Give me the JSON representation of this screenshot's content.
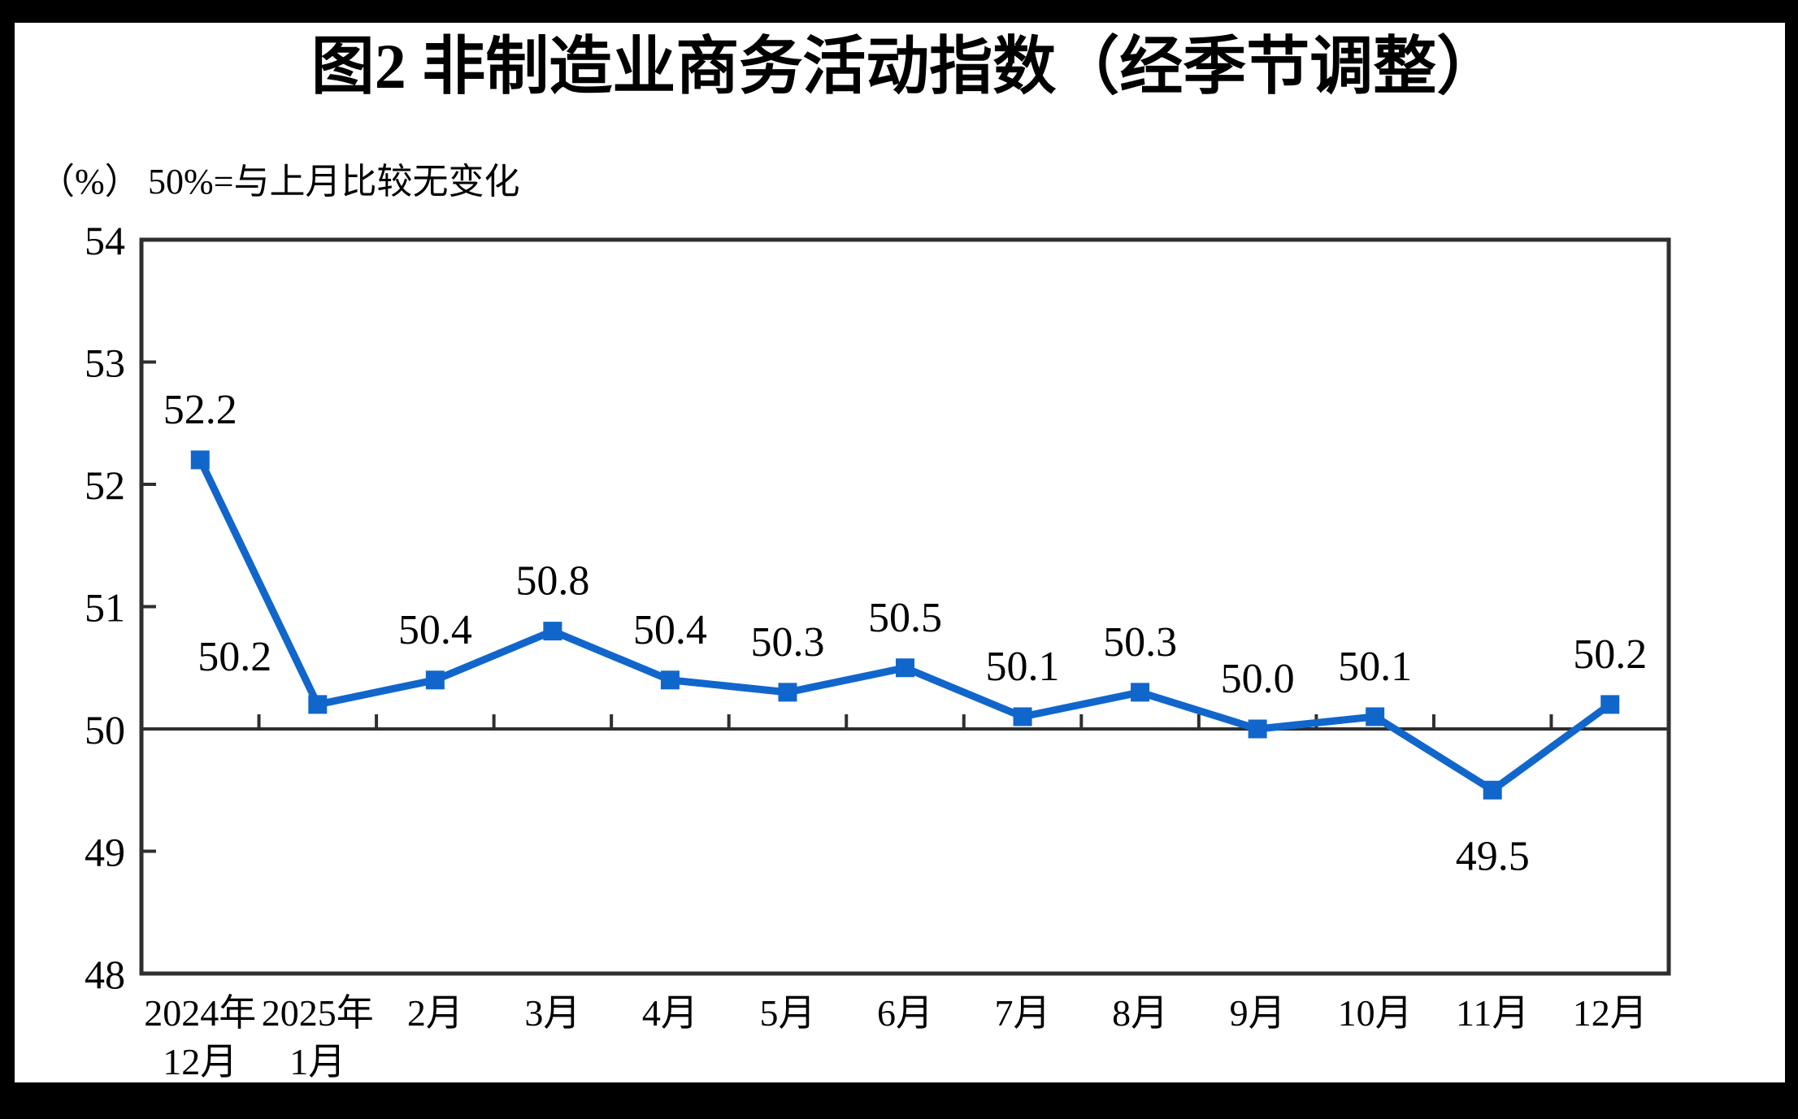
{
  "page": {
    "border_color": "#000000",
    "paper_color": "#ffffff"
  },
  "chart_data": {
    "type": "line",
    "title": "图2 非制造业商务活动指数（经季节调整）",
    "unit_label": "（%）",
    "subtitle": "50%=与上月比较无变化",
    "xlabel": "",
    "ylabel": "",
    "ylim": [
      48,
      54
    ],
    "y_tick_labels": [
      "48",
      "49",
      "50",
      "51",
      "52",
      "53",
      "54"
    ],
    "reference_line": 50,
    "grid": false,
    "legend": "none",
    "marker": "square",
    "categories": [
      [
        "2024年",
        "12月"
      ],
      [
        "2025年",
        "1月"
      ],
      [
        "2月"
      ],
      [
        "3月"
      ],
      [
        "4月"
      ],
      [
        "5月"
      ],
      [
        "6月"
      ],
      [
        "7月"
      ],
      [
        "8月"
      ],
      [
        "9月"
      ],
      [
        "10月"
      ],
      [
        "11月"
      ],
      [
        "12月"
      ]
    ],
    "values": [
      52.2,
      50.2,
      50.4,
      50.8,
      50.4,
      50.3,
      50.5,
      50.1,
      50.3,
      50.0,
      50.1,
      49.5,
      50.2
    ],
    "point_labels": [
      "52.2",
      "50.2",
      "50.4",
      "50.8",
      "50.4",
      "50.3",
      "50.5",
      "50.1",
      "50.3",
      "50.0",
      "50.1",
      "49.5",
      "50.2"
    ],
    "label_positions": [
      "above",
      "above_left",
      "above",
      "above",
      "above",
      "above",
      "above",
      "above",
      "above",
      "above",
      "above",
      "below",
      "above"
    ],
    "colors": {
      "series": "#1166CB",
      "axis": "#2F2F2F",
      "text": "#000000"
    }
  }
}
